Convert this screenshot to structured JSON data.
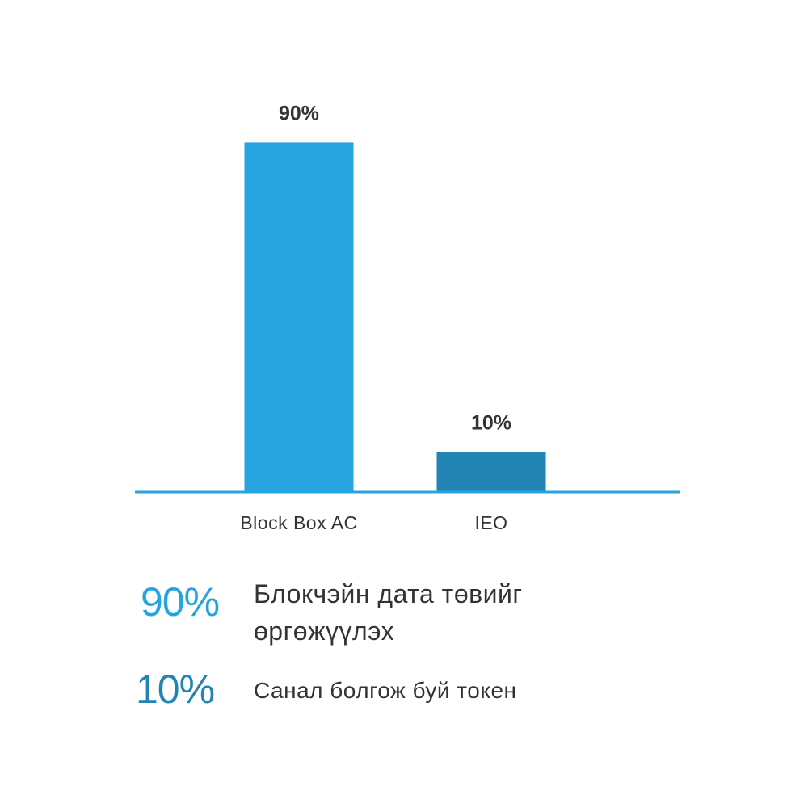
{
  "chart_data": {
    "type": "bar",
    "categories": [
      "Block Box AC",
      "IEO"
    ],
    "values": [
      90,
      10
    ],
    "value_labels": [
      "90%",
      "10%"
    ],
    "colors": [
      "#25a4e0",
      "#2184b4"
    ],
    "axis_color": "#25a4e0",
    "ylim": [
      0,
      100
    ],
    "grid": false
  },
  "legend": [
    {
      "percent": "90%",
      "text": "Блокчэйн  дата төвийг өргөжүүлэх",
      "color": "#25a4e0"
    },
    {
      "percent": "10%",
      "text": "Санал болгож буй токен",
      "color": "#2184b4"
    }
  ]
}
